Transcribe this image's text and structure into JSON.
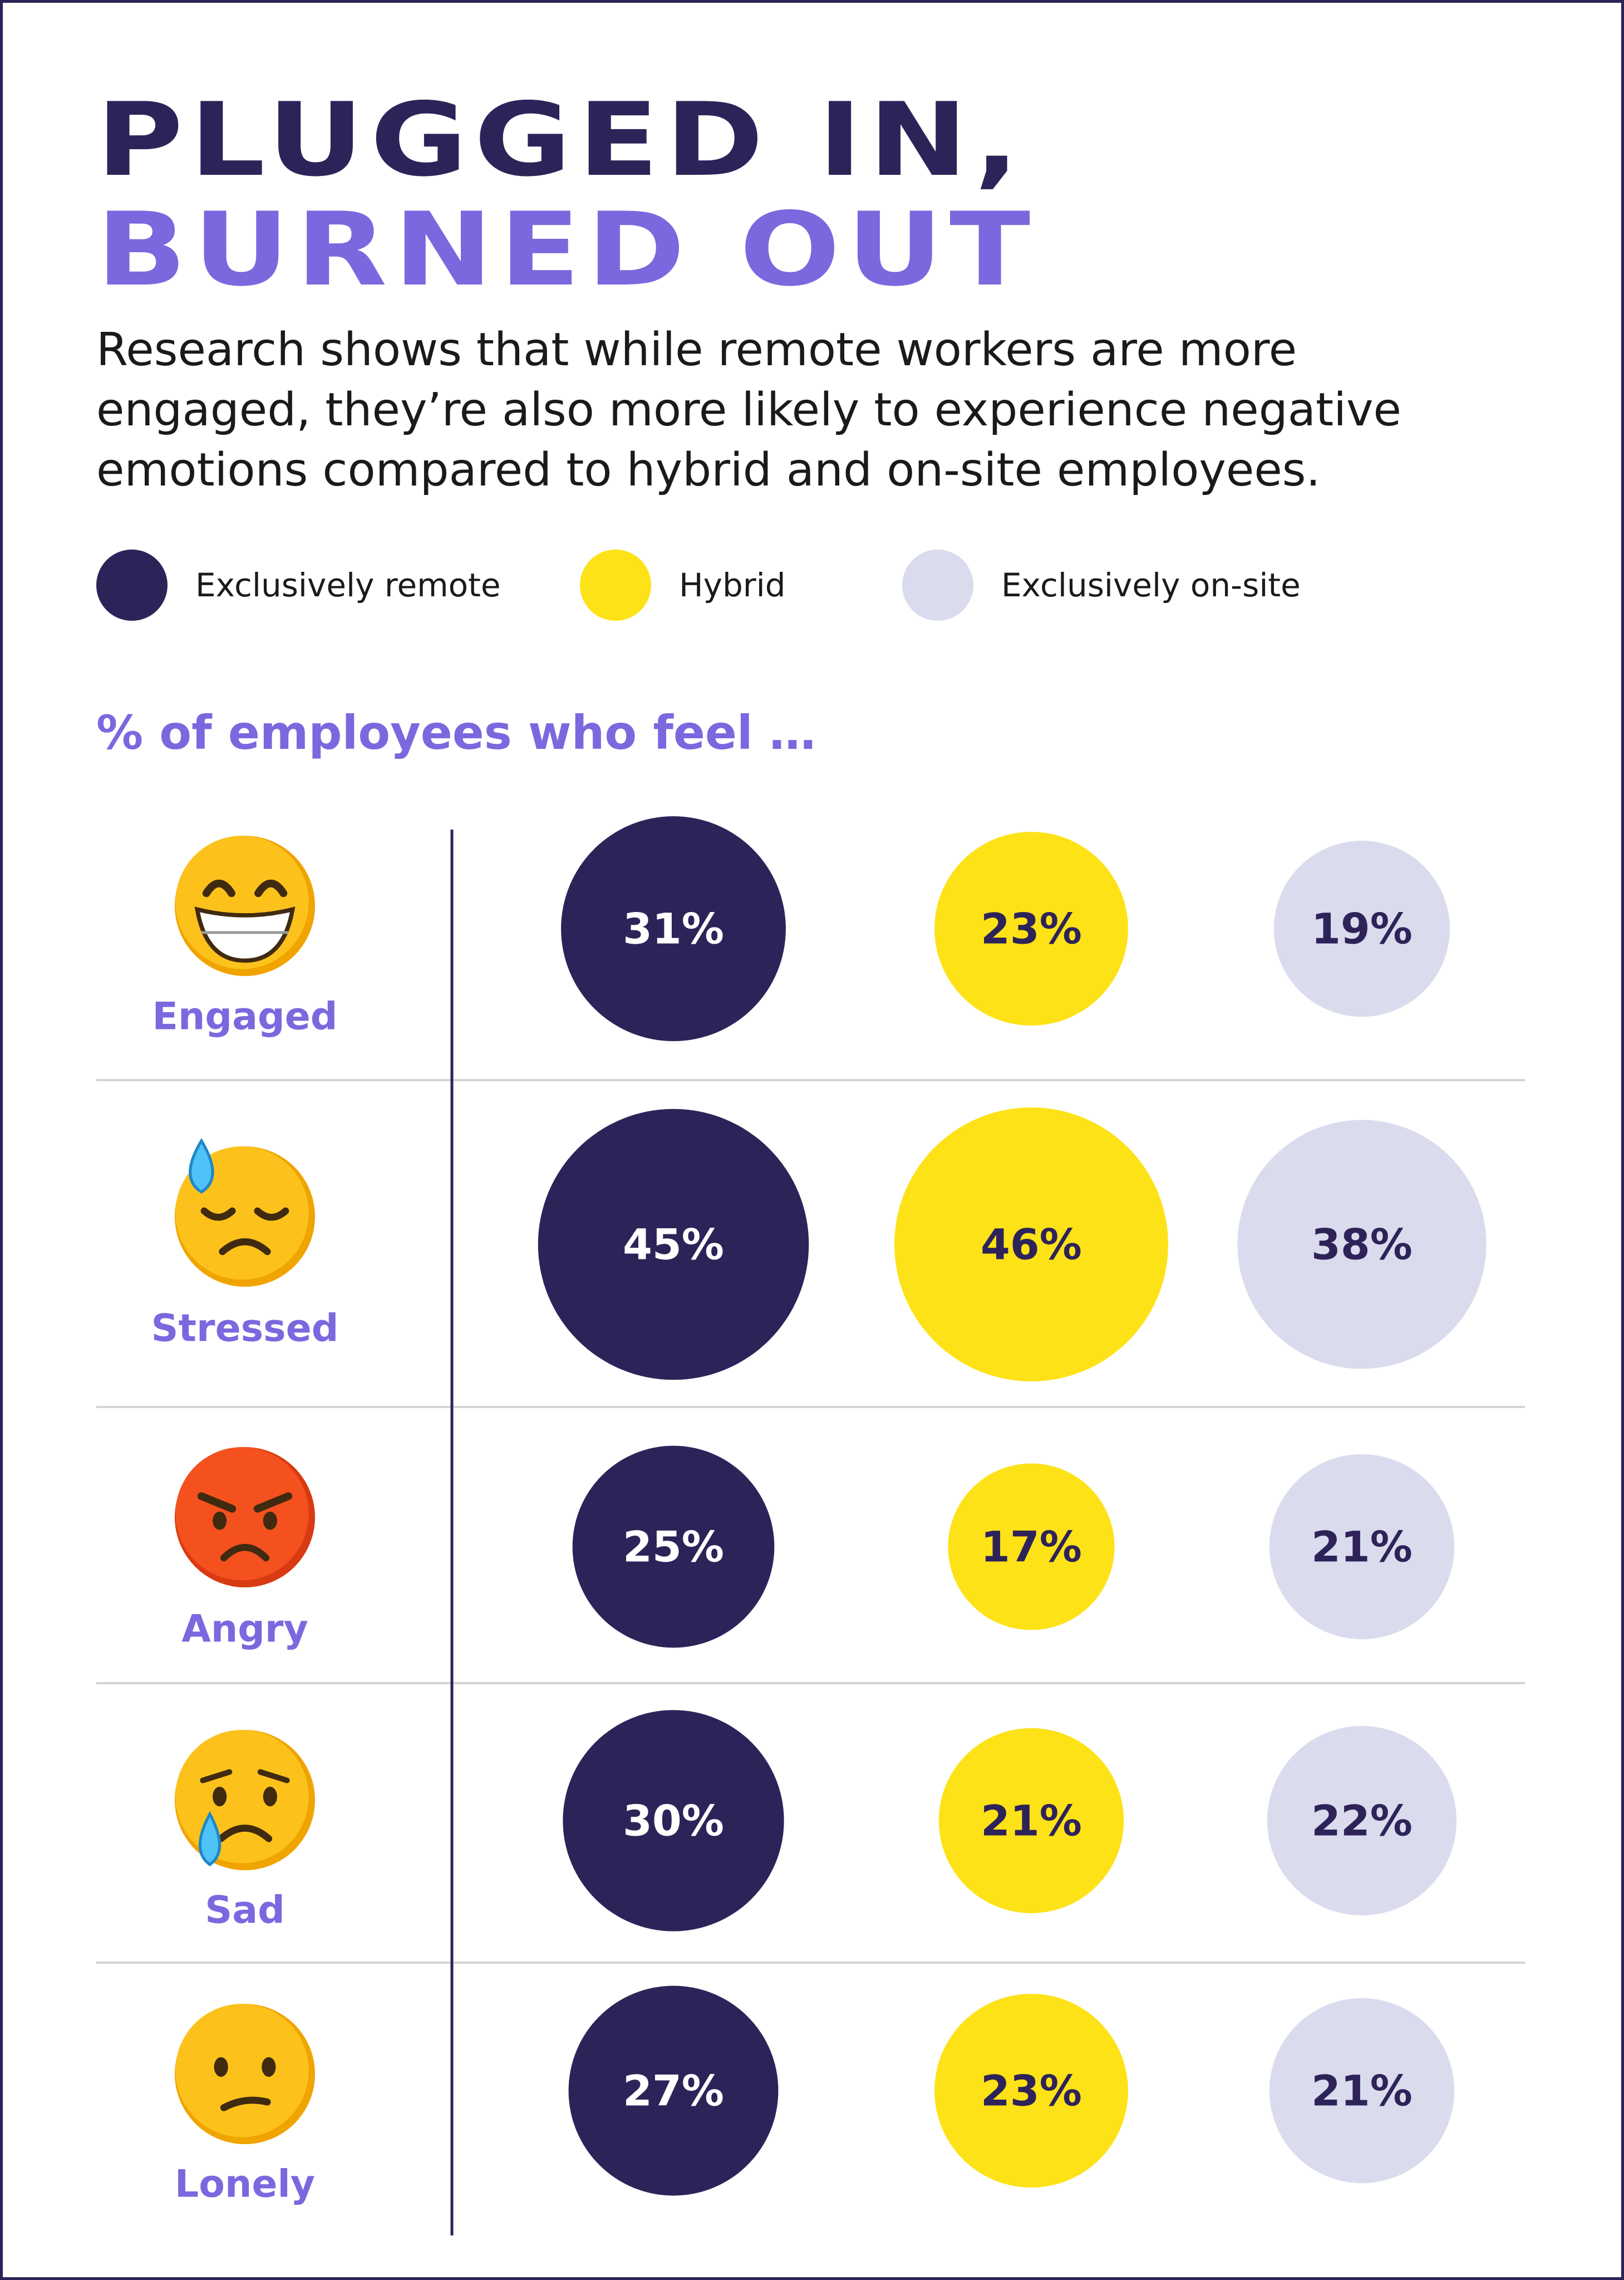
{
  "title": {
    "line1": "PLUGGED IN,",
    "line2": "BURNED OUT"
  },
  "subtitle": "Research shows that while remote workers are more engaged, they’re also more likely to experience negative emotions compared to hybrid and on-site employees.",
  "legend": [
    {
      "label": "Exclusively remote",
      "color": "#2e2359"
    },
    {
      "label": "Hybrid",
      "color": "#fde218"
    },
    {
      "label": "Exclusively on-site",
      "color": "#dadcee"
    }
  ],
  "section_label": "% of employees who feel …",
  "colors": {
    "accent": "#7b68de",
    "dark": "#2e2359",
    "divider": "#d3d3d8"
  },
  "chart_data": {
    "type": "bubble-table",
    "unit": "%",
    "series": [
      {
        "name": "Exclusively remote",
        "color": "#2e2359",
        "label_color": "#ffffff"
      },
      {
        "name": "Hybrid",
        "color": "#fde218",
        "label_color": "#2e2359"
      },
      {
        "name": "Exclusively on-site",
        "color": "#dadcee",
        "label_color": "#2e2359"
      }
    ],
    "rows": [
      {
        "category": "Engaged",
        "icon": "grinning-face-icon",
        "values": [
          31,
          23,
          19
        ],
        "labels": [
          "31%",
          "23%",
          "19%"
        ]
      },
      {
        "category": "Stressed",
        "icon": "downcast-sweat-face-icon",
        "values": [
          45,
          46,
          38
        ],
        "labels": [
          "45%",
          "46%",
          "38%"
        ]
      },
      {
        "category": "Angry",
        "icon": "angry-face-icon",
        "values": [
          25,
          17,
          21
        ],
        "labels": [
          "25%",
          "17%",
          "21%"
        ]
      },
      {
        "category": "Sad",
        "icon": "crying-face-icon",
        "values": [
          30,
          21,
          22
        ],
        "labels": [
          "30%",
          "21%",
          "22%"
        ]
      },
      {
        "category": "Lonely",
        "icon": "confused-face-icon",
        "values": [
          27,
          23,
          21
        ],
        "labels": [
          "27%",
          "23%",
          "21%"
        ]
      }
    ]
  }
}
